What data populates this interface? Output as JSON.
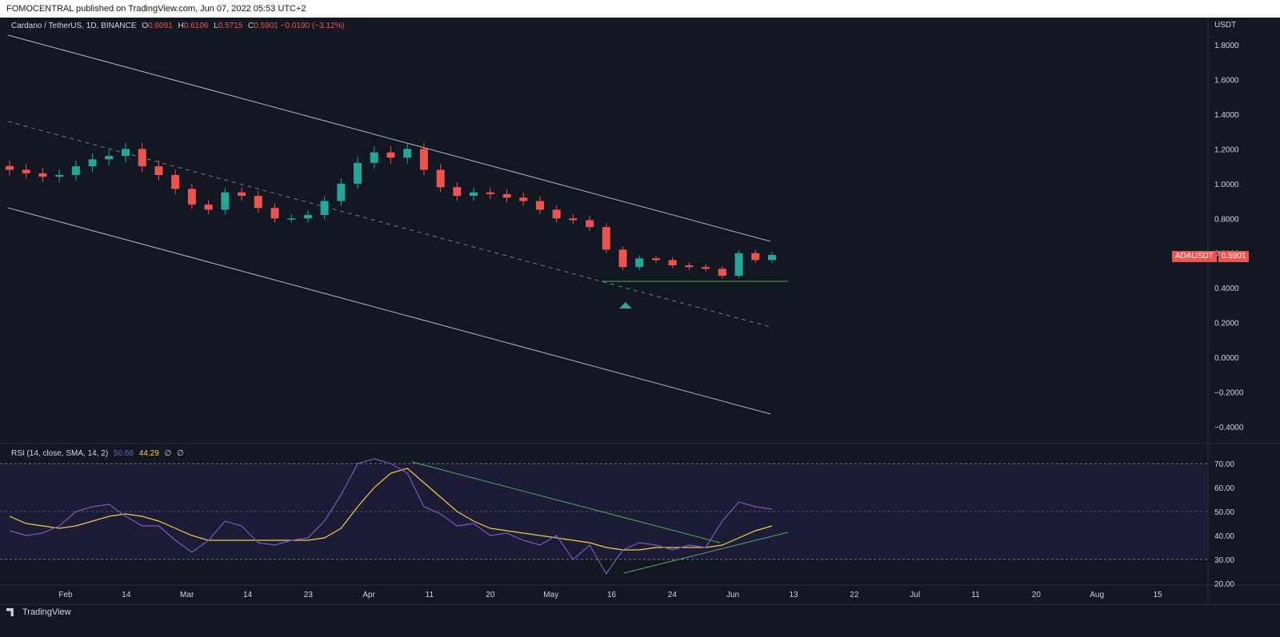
{
  "header": {
    "publisher_line": "FOMOCENTRAL published on TradingView.com, Jun 07, 2022 05:53 UTC+2"
  },
  "legend": {
    "symbol": "Cardano / TetherUS, 1D, BINANCE",
    "open_label": "O",
    "open": "0.6091",
    "high_label": "H",
    "high": "0.6106",
    "low_label": "L",
    "low": "0.5715",
    "close_label": "C",
    "close": "0.5901",
    "change": "−0.0190 (−3.12%)"
  },
  "rsi_legend": {
    "label": "RSI (14, close, SMA, 14, 2)",
    "rsi": "50.68",
    "sma": "44.29",
    "na1": "∅",
    "na2": "∅"
  },
  "price_axis": {
    "unit": "USDT",
    "ticks": [
      "1.8000",
      "1.6000",
      "1.4000",
      "1.2000",
      "1.0000",
      "0.8000",
      "0.6000",
      "0.4000",
      "0.2000",
      "0.0000",
      "−0.2000",
      "−0.4000"
    ]
  },
  "price_tag": {
    "symbol": "ADAUSDT",
    "value": "0.5901"
  },
  "rsi_axis": {
    "ticks": [
      "70.00",
      "60.00",
      "50.00",
      "40.00",
      "30.00",
      "20.00"
    ]
  },
  "time_axis": {
    "labels": [
      "Feb",
      "14",
      "Mar",
      "14",
      "23",
      "Apr",
      "11",
      "20",
      "May",
      "16",
      "24",
      "Jun",
      "13",
      "22",
      "Jul",
      "11",
      "20",
      "Aug",
      "15"
    ]
  },
  "footer": {
    "brand": "TradingView"
  },
  "colors": {
    "up": "#26a69a",
    "down": "#ef5350",
    "rsi": "#7e57c2",
    "rsi_sma": "#f7c948",
    "bg": "#131722"
  },
  "chart_data": {
    "type": "candlestick",
    "symbol": "Cardano / TetherUS",
    "timeframe": "1D",
    "x": [
      "Jan 21",
      "Jan 24",
      "Jan 27",
      "Jan 30",
      "Feb 02",
      "Feb 05",
      "Feb 08",
      "Feb 11",
      "Feb 14",
      "Feb 17",
      "Feb 20",
      "Feb 23",
      "Feb 26",
      "Mar 01",
      "Mar 04",
      "Mar 07",
      "Mar 10",
      "Mar 13",
      "Mar 16",
      "Mar 19",
      "Mar 22",
      "Mar 25",
      "Mar 28",
      "Mar 31",
      "Apr 03",
      "Apr 06",
      "Apr 09",
      "Apr 12",
      "Apr 15",
      "Apr 18",
      "Apr 21",
      "Apr 24",
      "Apr 27",
      "Apr 30",
      "May 03",
      "May 06",
      "May 09",
      "May 12",
      "May 15",
      "May 18",
      "May 21",
      "May 24",
      "May 27",
      "May 30",
      "Jun 02",
      "Jun 05",
      "Jun 07"
    ],
    "close": [
      1.08,
      1.06,
      1.04,
      1.05,
      1.1,
      1.14,
      1.16,
      1.2,
      1.1,
      1.05,
      0.97,
      0.88,
      0.85,
      0.95,
      0.93,
      0.86,
      0.8,
      0.8,
      0.82,
      0.9,
      1.0,
      1.12,
      1.18,
      1.15,
      1.2,
      1.08,
      0.98,
      0.93,
      0.95,
      0.94,
      0.92,
      0.9,
      0.85,
      0.8,
      0.79,
      0.75,
      0.62,
      0.52,
      0.57,
      0.56,
      0.53,
      0.52,
      0.51,
      0.47,
      0.6,
      0.56,
      0.59
    ],
    "ylim": [
      -0.4,
      1.8
    ],
    "rsi": {
      "ylim": [
        20,
        70
      ],
      "levels": [
        70,
        50,
        30
      ],
      "rsi_values": [
        42,
        40,
        41,
        44,
        50,
        52,
        53,
        48,
        44,
        44,
        38,
        33,
        38,
        46,
        44,
        37,
        36,
        38,
        39,
        46,
        57,
        70,
        72,
        70,
        66,
        52,
        49,
        44,
        45,
        40,
        41,
        38,
        36,
        40,
        30,
        36,
        24,
        34,
        37,
        36,
        34,
        36,
        35,
        46,
        54,
        52,
        51
      ],
      "sma_values": [
        48,
        45,
        44,
        43,
        44,
        46,
        48,
        49,
        48,
        46,
        43,
        40,
        38,
        38,
        38,
        38,
        38,
        38,
        38,
        39,
        43,
        52,
        60,
        66,
        68,
        62,
        56,
        50,
        46,
        43,
        42,
        41,
        40,
        39,
        38,
        37,
        35,
        34,
        34,
        35,
        35,
        35,
        35,
        36,
        39,
        42,
        44
      ]
    }
  }
}
